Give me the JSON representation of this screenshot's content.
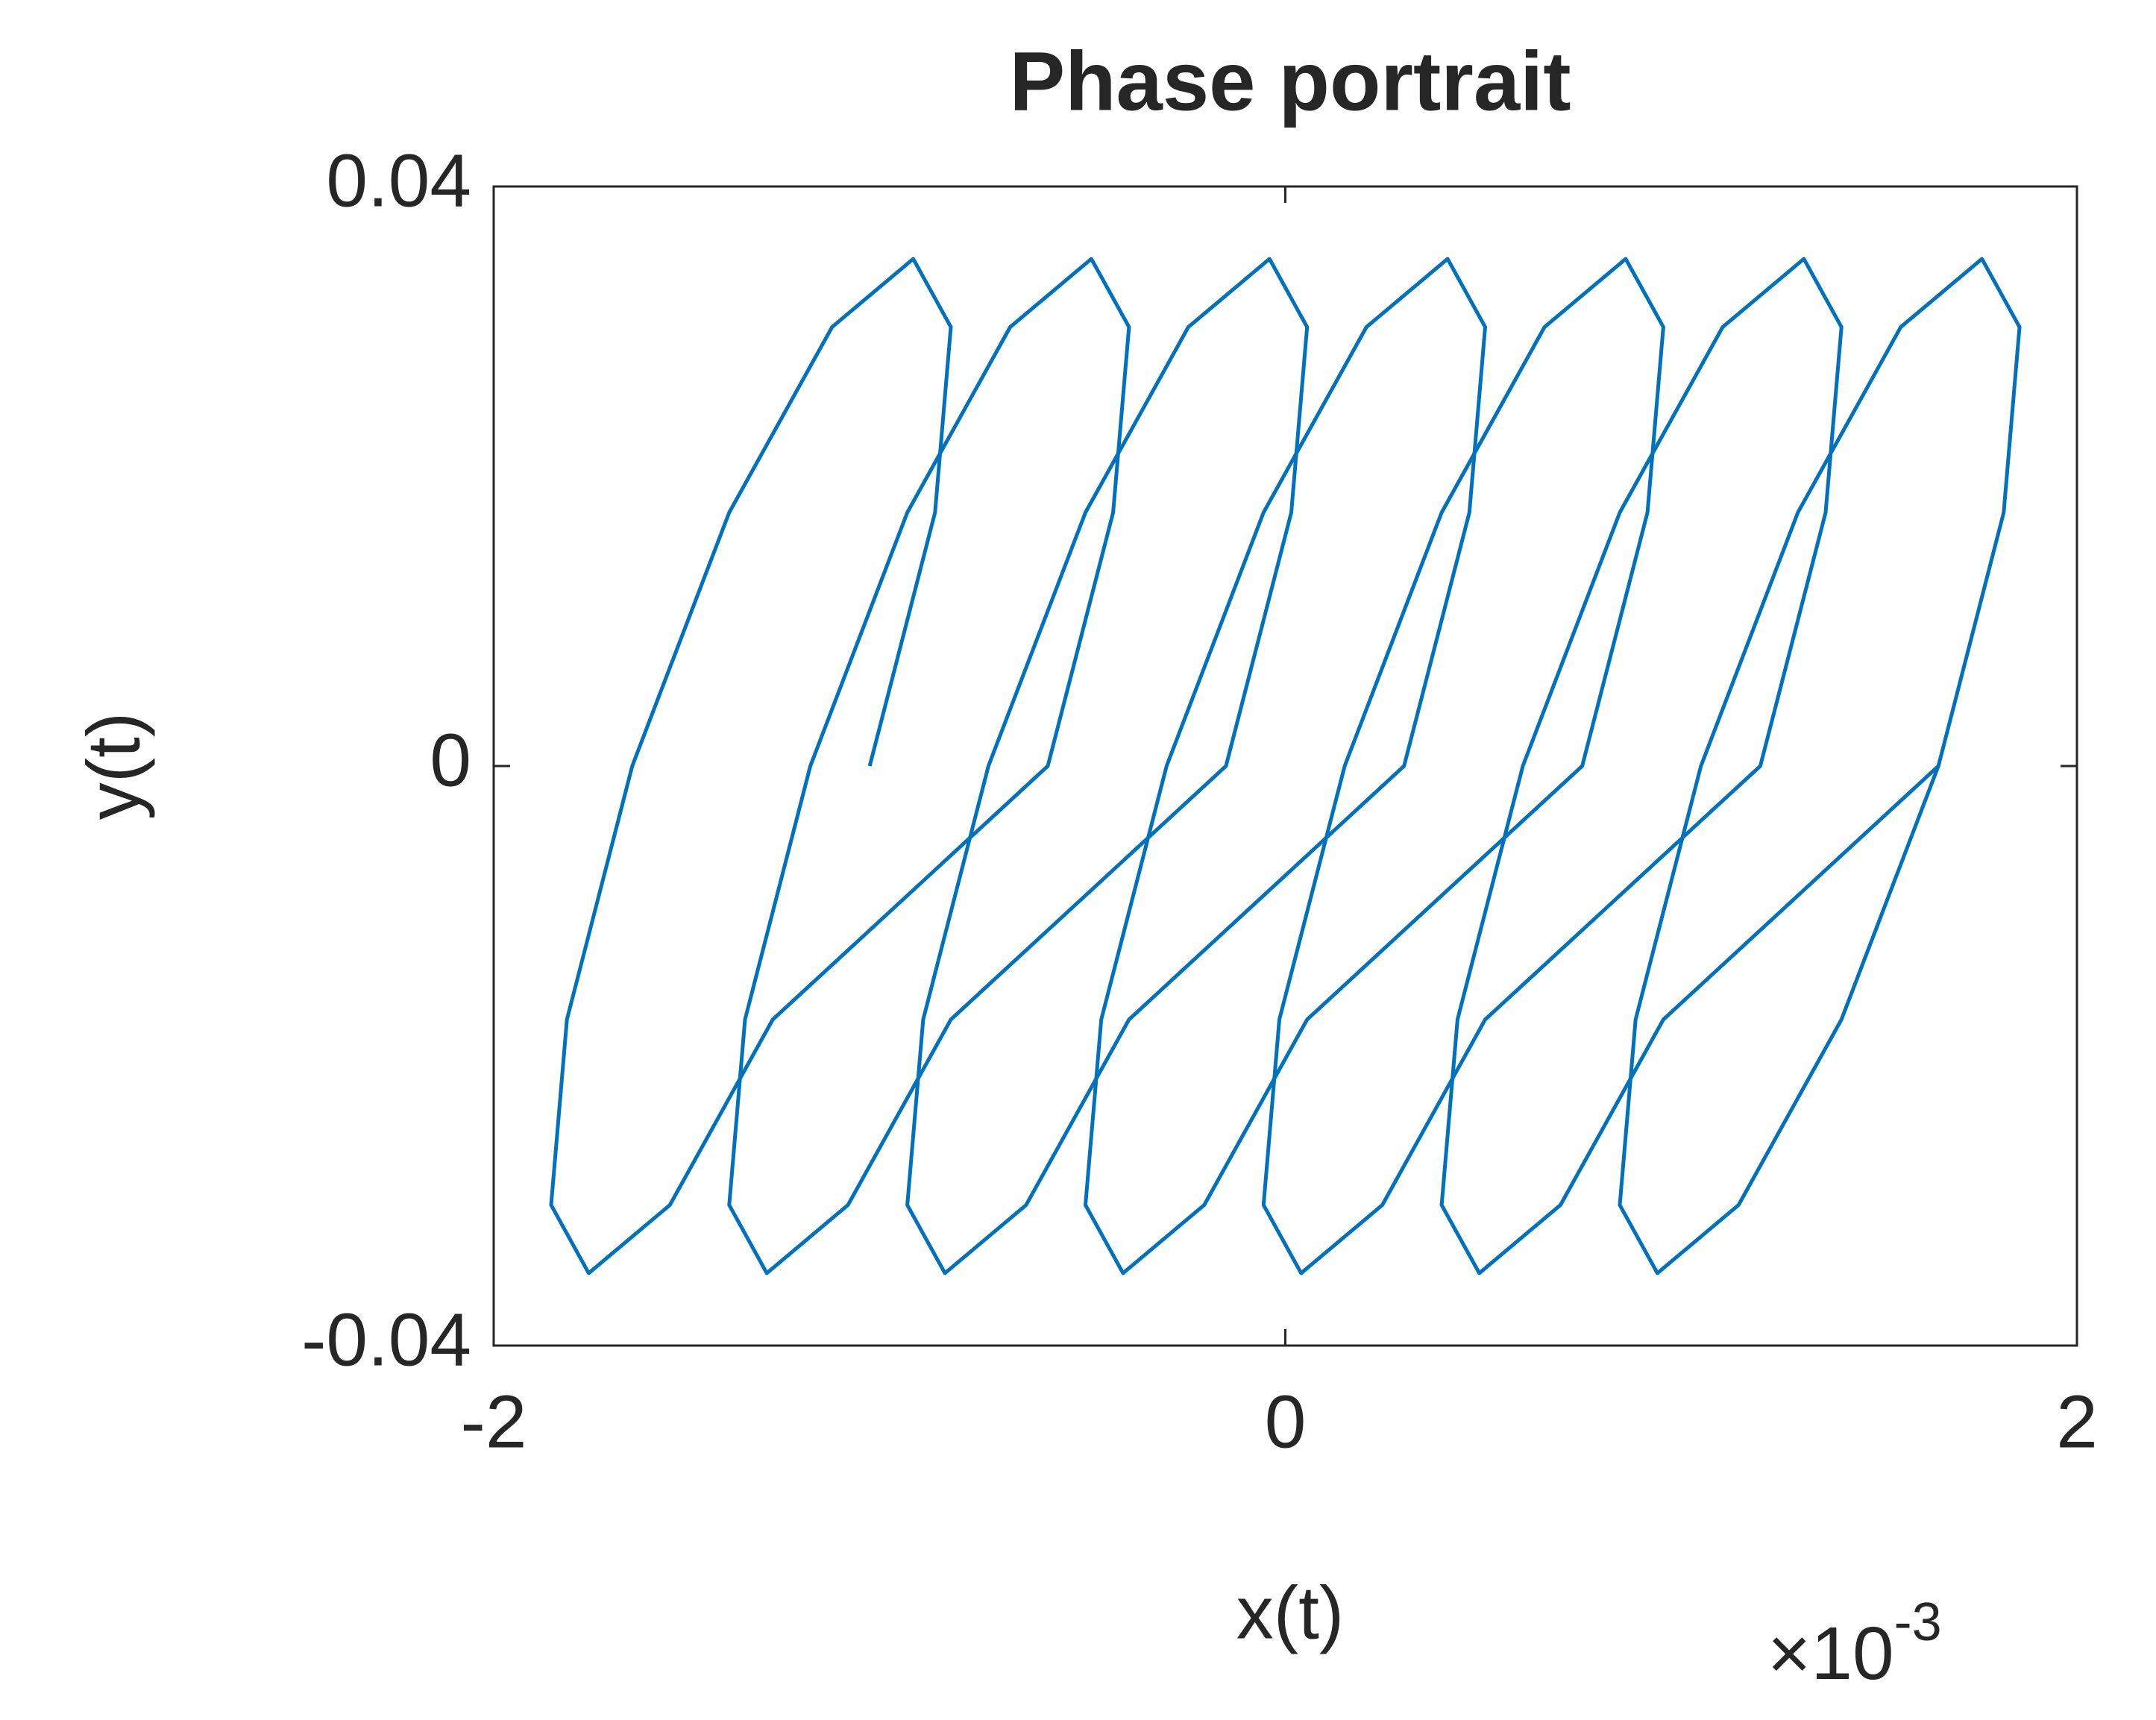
{
  "chart_data": {
    "type": "line",
    "title": "Phase portrait",
    "x_label": "x(t)",
    "y_label": "y(t)",
    "x_multiplier": "×10",
    "x_exponent": "-3",
    "xlim": [
      -2,
      2
    ],
    "xticks": [
      -2,
      0,
      2
    ],
    "ylim": [
      -0.04,
      0.04
    ],
    "yticks": [
      -0.04,
      0,
      0.04
    ],
    "grid": false,
    "series": [
      {
        "color": "#0072BD",
        "x": [
          -1.05,
          -0.885,
          -0.845,
          -0.94,
          -1.145,
          -1.405,
          -1.65,
          -1.815,
          -1.855,
          -1.76,
          -1.555,
          -1.295,
          -0.6,
          -0.435,
          -0.395,
          -0.49,
          -0.695,
          -0.955,
          -1.2,
          -1.365,
          -1.405,
          -1.31,
          -1.105,
          -0.845,
          -0.15,
          0.015,
          0.055,
          -0.04,
          -0.245,
          -0.505,
          -0.75,
          -0.915,
          -0.955,
          -0.86,
          -0.655,
          -0.395,
          0.3,
          0.465,
          0.505,
          0.41,
          0.205,
          -0.055,
          -0.3,
          -0.465,
          -0.505,
          -0.41,
          -0.205,
          0.055,
          0.75,
          0.915,
          0.955,
          0.86,
          0.655,
          0.395,
          0.15,
          -0.015,
          -0.055,
          0.04,
          0.245,
          0.505,
          1.2,
          1.365,
          1.405,
          1.31,
          1.105,
          0.845,
          0.6,
          0.435,
          0.395,
          0.49,
          0.695,
          0.955,
          1.65,
          1.815,
          1.855,
          1.76,
          1.555,
          1.295,
          1.05,
          0.885,
          0.845,
          0.94,
          1.145,
          1.405,
          1.65
        ],
        "y": [
          0,
          0.0175,
          0.0303,
          0.035,
          0.0303,
          0.0175,
          0,
          -0.0175,
          -0.0303,
          -0.035,
          -0.0303,
          -0.0175,
          0,
          0.0175,
          0.0303,
          0.035,
          0.0303,
          0.0175,
          0,
          -0.0175,
          -0.0303,
          -0.035,
          -0.0303,
          -0.0175,
          0,
          0.0175,
          0.0303,
          0.035,
          0.0303,
          0.0175,
          0,
          -0.0175,
          -0.0303,
          -0.035,
          -0.0303,
          -0.0175,
          0,
          0.0175,
          0.0303,
          0.035,
          0.0303,
          0.0175,
          0,
          -0.0175,
          -0.0303,
          -0.035,
          -0.0303,
          -0.0175,
          0,
          0.0175,
          0.0303,
          0.035,
          0.0303,
          0.0175,
          0,
          -0.0175,
          -0.0303,
          -0.035,
          -0.0303,
          -0.0175,
          0,
          0.0175,
          0.0303,
          0.035,
          0.0303,
          0.0175,
          0,
          -0.0175,
          -0.0303,
          -0.035,
          -0.0303,
          -0.0175,
          0,
          0.0175,
          0.0303,
          0.035,
          0.0303,
          0.0175,
          0,
          -0.0175,
          -0.0303,
          -0.035,
          -0.0303,
          -0.0175,
          0
        ]
      }
    ]
  }
}
